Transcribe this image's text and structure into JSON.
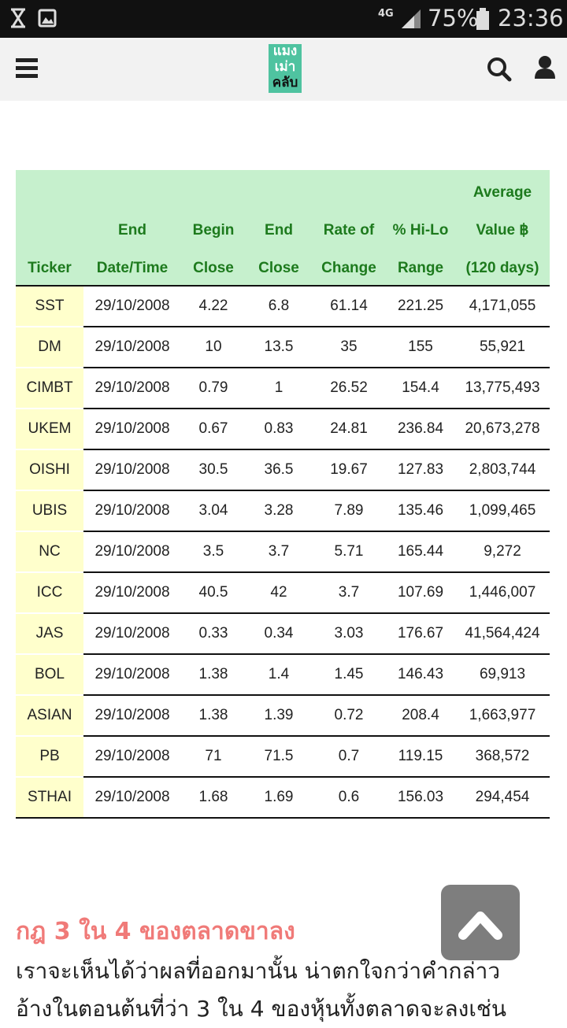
{
  "status_bar": {
    "network": "4G",
    "battery": "75%",
    "time": "23:36"
  },
  "header": {
    "logo_lines": [
      "แมง",
      "เม่า",
      "คลับ"
    ]
  },
  "table": {
    "headers": [
      [
        "Ticker"
      ],
      [
        "End",
        "Date/Time"
      ],
      [
        "Begin",
        "Close"
      ],
      [
        "End",
        "Close"
      ],
      [
        "Rate of",
        "Change"
      ],
      [
        "% Hi-Lo",
        "Range"
      ],
      [
        "Average",
        "Value ฿",
        "(120 days)"
      ]
    ],
    "rows": [
      [
        "SST",
        "29/10/2008",
        "4.22",
        "6.8",
        "61.14",
        "221.25",
        "4,171,055"
      ],
      [
        "DM",
        "29/10/2008",
        "10",
        "13.5",
        "35",
        "155",
        "55,921"
      ],
      [
        "CIMBT",
        "29/10/2008",
        "0.79",
        "1",
        "26.52",
        "154.4",
        "13,775,493"
      ],
      [
        "UKEM",
        "29/10/2008",
        "0.67",
        "0.83",
        "24.81",
        "236.84",
        "20,673,278"
      ],
      [
        "OISHI",
        "29/10/2008",
        "30.5",
        "36.5",
        "19.67",
        "127.83",
        "2,803,744"
      ],
      [
        "UBIS",
        "29/10/2008",
        "3.04",
        "3.28",
        "7.89",
        "135.46",
        "1,099,465"
      ],
      [
        "NC",
        "29/10/2008",
        "3.5",
        "3.7",
        "5.71",
        "165.44",
        "9,272"
      ],
      [
        "ICC",
        "29/10/2008",
        "40.5",
        "42",
        "3.7",
        "107.69",
        "1,446,007"
      ],
      [
        "JAS",
        "29/10/2008",
        "0.33",
        "0.34",
        "3.03",
        "176.67",
        "41,564,424"
      ],
      [
        "BOL",
        "29/10/2008",
        "1.38",
        "1.4",
        "1.45",
        "146.43",
        "69,913"
      ],
      [
        "ASIAN",
        "29/10/2008",
        "1.38",
        "1.39",
        "0.72",
        "208.4",
        "1,663,977"
      ],
      [
        "PB",
        "29/10/2008",
        "71",
        "71.5",
        "0.7",
        "119.15",
        "368,572"
      ],
      [
        "STHAI",
        "29/10/2008",
        "1.68",
        "1.69",
        "0.6",
        "156.03",
        "294,454"
      ]
    ]
  },
  "article": {
    "heading": "กฎ 3 ใน 4 ของตลาดขาลง",
    "paragraph_lines": [
      "เราจะเห็นได้ว่าผลที่ออกมานั้น น่าตกใจกว่าคำกล่าว",
      "อ้างในตอนต้นที่ว่า 3 ใน 4 ของหุ้นทั้งตลาดจะลงเช่น"
    ]
  }
}
